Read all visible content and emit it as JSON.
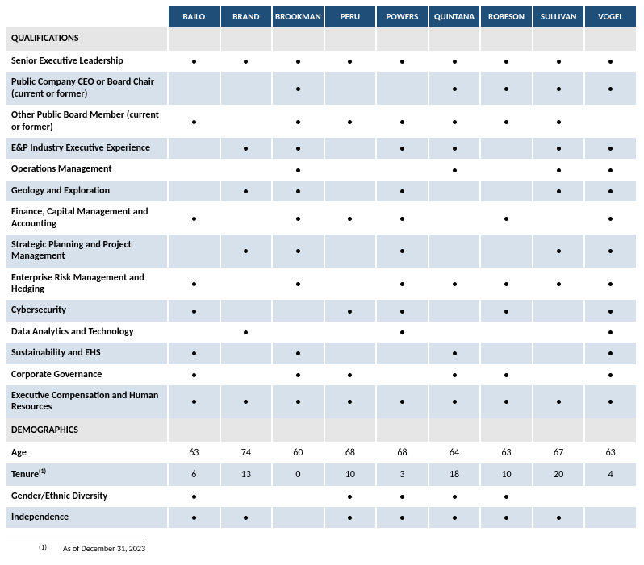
{
  "people": [
    "BAILO",
    "BRAND",
    "BROOKMAN",
    "PERU",
    "POWERS",
    "QUINTANA",
    "ROBESON",
    "SULLIVAN",
    "VOGEL"
  ],
  "sections": {
    "qualifications": {
      "title": "QUALIFICATIONS",
      "rows": [
        {
          "label": "Senior Executive Leadership",
          "marks": [
            1,
            1,
            1,
            1,
            1,
            1,
            1,
            1,
            1
          ]
        },
        {
          "label": "Public Company CEO or Board Chair (current or former)",
          "marks": [
            0,
            0,
            1,
            0,
            0,
            1,
            1,
            1,
            1
          ]
        },
        {
          "label": "Other Public Board Member (current or former)",
          "marks": [
            1,
            0,
            1,
            1,
            1,
            1,
            1,
            1,
            0
          ]
        },
        {
          "label": "E&P Industry Executive Experience",
          "marks": [
            0,
            1,
            1,
            0,
            1,
            1,
            0,
            1,
            1
          ]
        },
        {
          "label": "Operations Management",
          "marks": [
            0,
            0,
            1,
            0,
            0,
            1,
            0,
            1,
            1
          ]
        },
        {
          "label": "Geology and Exploration",
          "marks": [
            0,
            1,
            1,
            0,
            1,
            0,
            0,
            1,
            1
          ]
        },
        {
          "label": "Finance, Capital Management and Accounting",
          "marks": [
            1,
            0,
            1,
            1,
            1,
            0,
            1,
            0,
            1
          ]
        },
        {
          "label": "Strategic Planning and Project Management",
          "marks": [
            0,
            1,
            1,
            0,
            1,
            0,
            0,
            1,
            1
          ]
        },
        {
          "label": "Enterprise Risk Management and Hedging",
          "marks": [
            1,
            0,
            1,
            0,
            1,
            1,
            1,
            1,
            1
          ]
        },
        {
          "label": "Cybersecurity",
          "marks": [
            1,
            0,
            0,
            1,
            1,
            0,
            1,
            0,
            1
          ]
        },
        {
          "label": "Data Analytics and Technology",
          "marks": [
            0,
            1,
            0,
            0,
            1,
            0,
            0,
            0,
            1
          ]
        },
        {
          "label": "Sustainability and EHS",
          "marks": [
            1,
            0,
            1,
            0,
            0,
            1,
            0,
            0,
            1
          ]
        },
        {
          "label": "Corporate Governance",
          "marks": [
            1,
            0,
            1,
            1,
            0,
            1,
            1,
            0,
            1
          ]
        },
        {
          "label": "Executive Compensation and Human Resources",
          "marks": [
            1,
            1,
            1,
            1,
            1,
            1,
            1,
            1,
            1
          ]
        }
      ]
    },
    "demographics": {
      "title": "DEMOGRAPHICS",
      "rows": [
        {
          "label": "Age",
          "values": [
            "63",
            "74",
            "60",
            "68",
            "68",
            "64",
            "63",
            "67",
            "63"
          ]
        },
        {
          "label": "Tenure",
          "sup": "(1)",
          "values": [
            "6",
            "13",
            "0",
            "10",
            "3",
            "18",
            "10",
            "20",
            "4"
          ]
        },
        {
          "label": "Gender/Ethnic Diversity",
          "marks": [
            1,
            0,
            0,
            1,
            1,
            1,
            1,
            0,
            0
          ]
        },
        {
          "label": "Independence",
          "marks": [
            1,
            1,
            0,
            1,
            1,
            1,
            1,
            1,
            0
          ]
        }
      ]
    }
  },
  "footnote": {
    "num": "(1)",
    "text": "As of December 31, 2023"
  }
}
